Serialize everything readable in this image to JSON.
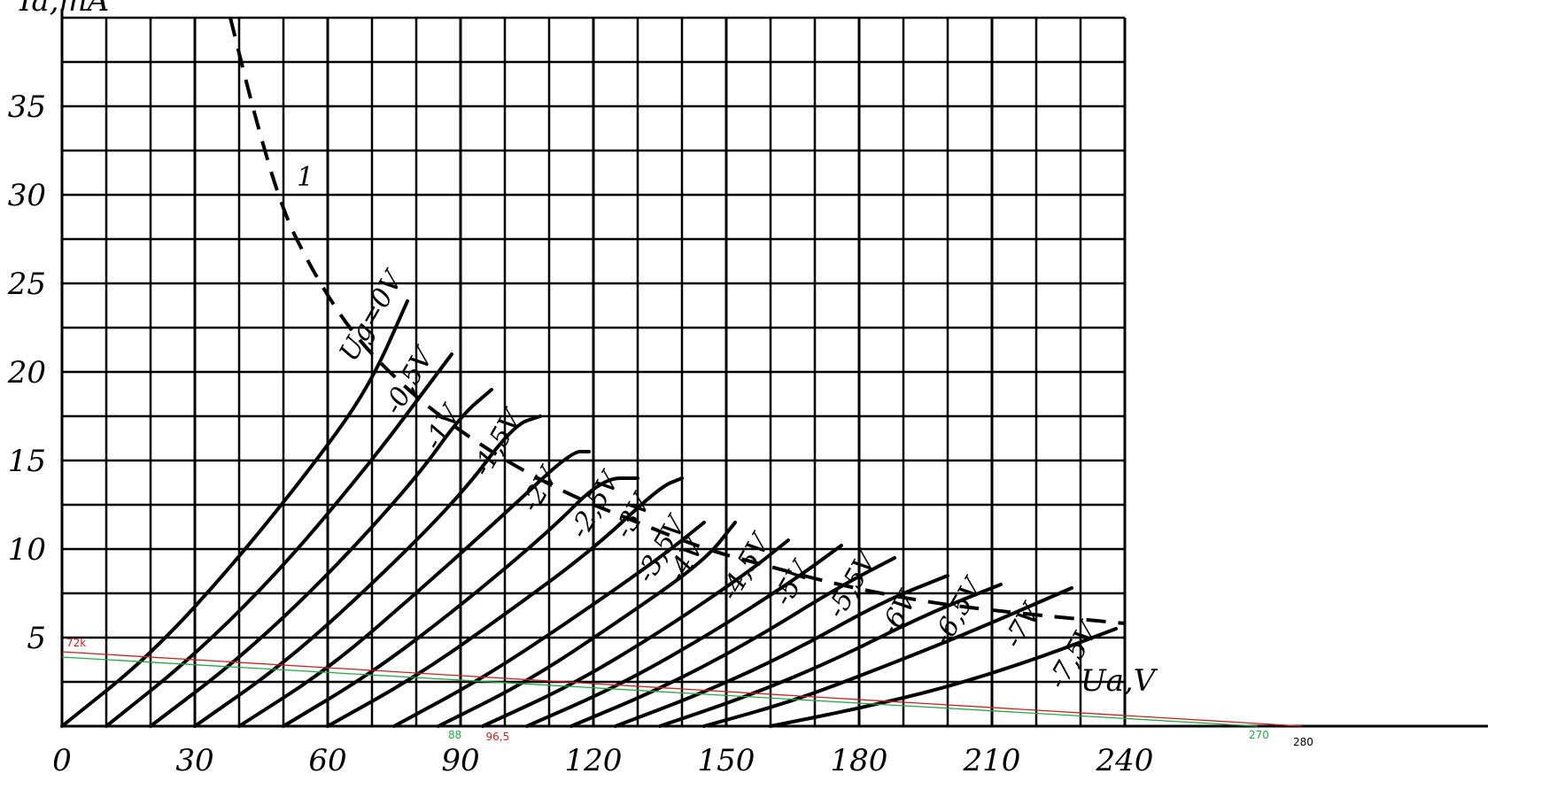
{
  "chart_data": {
    "type": "line",
    "xlabel": "Ua,V",
    "ylabel": "Ia,mA",
    "xlim": [
      0,
      240
    ],
    "ylim": [
      0,
      40
    ],
    "x_ticks": [
      "0",
      "30",
      "60",
      "90",
      "120",
      "150",
      "180",
      "210",
      "240"
    ],
    "y_ticks": [
      "5",
      "10",
      "15",
      "20",
      "25",
      "30",
      "35"
    ],
    "grid": true,
    "series": [
      {
        "name": "Ug=0V",
        "points": [
          [
            0,
            0
          ],
          [
            20,
            4
          ],
          [
            40,
            9.5
          ],
          [
            60,
            15.8
          ],
          [
            70,
            19.5
          ],
          [
            78,
            24
          ]
        ]
      },
      {
        "name": "-0,5V",
        "points": [
          [
            10,
            0
          ],
          [
            30,
            4
          ],
          [
            50,
            9
          ],
          [
            70,
            15
          ],
          [
            82,
            19
          ],
          [
            88,
            21
          ]
        ]
      },
      {
        "name": "-1V",
        "points": [
          [
            20,
            0
          ],
          [
            40,
            3.8
          ],
          [
            60,
            8.5
          ],
          [
            80,
            14
          ],
          [
            90,
            17.5
          ],
          [
            97,
            19
          ]
        ]
      },
      {
        "name": "-1,5V",
        "points": [
          [
            30,
            0
          ],
          [
            50,
            3.5
          ],
          [
            70,
            8
          ],
          [
            90,
            13
          ],
          [
            102,
            17
          ],
          [
            108,
            17.5
          ]
        ]
      },
      {
        "name": "-2V",
        "points": [
          [
            40,
            0
          ],
          [
            60,
            3.2
          ],
          [
            80,
            7.5
          ],
          [
            100,
            12
          ],
          [
            115,
            15.5
          ],
          [
            119,
            15.5
          ]
        ]
      },
      {
        "name": "-2,5V",
        "points": [
          [
            50,
            0
          ],
          [
            70,
            3
          ],
          [
            90,
            6.8
          ],
          [
            110,
            11
          ],
          [
            122,
            14
          ],
          [
            130,
            14
          ]
        ]
      },
      {
        "name": "-3V",
        "points": [
          [
            60,
            0
          ],
          [
            80,
            2.8
          ],
          [
            100,
            6.3
          ],
          [
            120,
            10
          ],
          [
            135,
            13.5
          ],
          [
            140,
            14
          ]
        ]
      },
      {
        "name": "-3,5V",
        "points": [
          [
            75,
            0
          ],
          [
            95,
            2.7
          ],
          [
            115,
            6
          ],
          [
            135,
            9.5
          ],
          [
            145,
            11.5
          ]
        ]
      },
      {
        "name": "-4V",
        "points": [
          [
            85,
            0
          ],
          [
            105,
            2.5
          ],
          [
            125,
            5.8
          ],
          [
            145,
            9.3
          ],
          [
            152,
            11.5
          ]
        ]
      },
      {
        "name": "-4,5V",
        "points": [
          [
            95,
            0
          ],
          [
            115,
            2.3
          ],
          [
            135,
            5.3
          ],
          [
            155,
            8.7
          ],
          [
            164,
            10.5
          ]
        ]
      },
      {
        "name": "-5V",
        "points": [
          [
            105,
            0
          ],
          [
            125,
            2.2
          ],
          [
            145,
            5
          ],
          [
            165,
            8.2
          ],
          [
            176,
            10.2
          ]
        ]
      },
      {
        "name": "-5,5V",
        "points": [
          [
            115,
            0
          ],
          [
            135,
            2.1
          ],
          [
            155,
            4.7
          ],
          [
            175,
            7.8
          ],
          [
            188,
            9.5
          ]
        ]
      },
      {
        "name": "-6V",
        "points": [
          [
            125,
            0
          ],
          [
            145,
            1.9
          ],
          [
            165,
            4.2
          ],
          [
            185,
            7
          ],
          [
            200,
            8.5
          ]
        ]
      },
      {
        "name": "-6,5V",
        "points": [
          [
            135,
            0
          ],
          [
            155,
            1.7
          ],
          [
            175,
            3.8
          ],
          [
            195,
            6.3
          ],
          [
            212,
            8
          ]
        ]
      },
      {
        "name": "-7V",
        "points": [
          [
            145,
            0
          ],
          [
            165,
            1.4
          ],
          [
            185,
            3.3
          ],
          [
            205,
            5.3
          ],
          [
            228,
            7.8
          ]
        ]
      },
      {
        "name": "-7,5V",
        "points": [
          [
            160,
            0
          ],
          [
            180,
            1
          ],
          [
            200,
            2.2
          ],
          [
            220,
            3.8
          ],
          [
            238,
            5.5
          ]
        ]
      }
    ],
    "dissipation_curve": {
      "label": "1",
      "points": [
        [
          38,
          40
        ],
        [
          44,
          34
        ],
        [
          50,
          29
        ],
        [
          56,
          26
        ],
        [
          62,
          23.5
        ],
        [
          68,
          21.5
        ],
        [
          78,
          19
        ],
        [
          88,
          17
        ],
        [
          100,
          15
        ],
        [
          115,
          13
        ],
        [
          130,
          11.5
        ],
        [
          145,
          10
        ],
        [
          160,
          9
        ],
        [
          175,
          8
        ],
        [
          195,
          7
        ],
        [
          215,
          6.4
        ],
        [
          240,
          5.8
        ]
      ]
    },
    "load_lines": [
      {
        "color": "#cc2222",
        "points": [
          [
            0,
            4.2
          ],
          [
            280,
            0
          ]
        ]
      },
      {
        "color": "#22aa44",
        "points": [
          [
            0,
            3.9
          ],
          [
            270,
            0
          ]
        ]
      }
    ],
    "annotations": {
      "r_label": "72k",
      "green_marks": [
        "88",
        "270"
      ],
      "red_mark": "96,5",
      "black_mark": "280"
    }
  }
}
